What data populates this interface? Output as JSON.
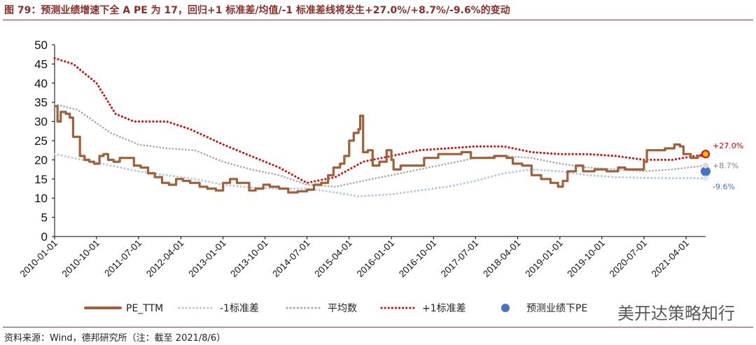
{
  "title": "图 79：预测业绩增速下全 A PE 为 17，回归+1 标准差/均值/-1 标准差线将发生+27.0%/+8.7%/-9.6%的变动",
  "source": "资料来源：Wind，德邦研究所（注：截至 2021/8/6）",
  "watermark": "美开达策略知行",
  "colors": {
    "pe": "#A0603A",
    "minus1": "#B4C7E7",
    "mean": "#A6A6A6",
    "plus1": "#E00000",
    "forecast": "#4472C4",
    "title": "#8B2E2A"
  },
  "chart_data": {
    "type": "line",
    "title": "",
    "xlabel": "",
    "ylabel": "",
    "ylim": [
      0,
      50
    ],
    "yticks": [
      "0",
      "5",
      "10",
      "15",
      "20",
      "25",
      "30",
      "35",
      "40",
      "45",
      "50"
    ],
    "x_range": [
      "2010-01-01",
      "2021-08-06"
    ],
    "xticks": [
      "2010-01-01",
      "2010-10-01",
      "2011-07-01",
      "2012-04-01",
      "2013-01-01",
      "2013-10-01",
      "2014-07-01",
      "2015-04-01",
      "2016-01-01",
      "2016-10-01",
      "2017-07-01",
      "2018-04-01",
      "2019-01-01",
      "2019-10-01",
      "2020-07-01",
      "2021-04-01"
    ],
    "series": [
      {
        "name": "PE_TTM",
        "style": "solid",
        "points": [
          [
            "2010-01-01",
            34
          ],
          [
            "2010-01-20",
            30
          ],
          [
            "2010-02-10",
            32.5
          ],
          [
            "2010-03-15",
            32
          ],
          [
            "2010-04-10",
            31
          ],
          [
            "2010-05-01",
            26
          ],
          [
            "2010-06-15",
            21
          ],
          [
            "2010-07-15",
            20
          ],
          [
            "2010-08-15",
            19.5
          ],
          [
            "2010-09-15",
            19
          ],
          [
            "2010-10-20",
            21
          ],
          [
            "2010-11-15",
            21.5
          ],
          [
            "2010-12-15",
            20
          ],
          [
            "2011-01-20",
            19.5
          ],
          [
            "2011-03-01",
            20.5
          ],
          [
            "2011-04-20",
            20.5
          ],
          [
            "2011-06-01",
            18.5
          ],
          [
            "2011-07-15",
            18
          ],
          [
            "2011-09-01",
            16.5
          ],
          [
            "2011-10-15",
            15.5
          ],
          [
            "2011-12-01",
            14
          ],
          [
            "2012-01-15",
            13.5
          ],
          [
            "2012-03-01",
            15
          ],
          [
            "2012-04-15",
            14.5
          ],
          [
            "2012-06-01",
            14
          ],
          [
            "2012-08-01",
            13
          ],
          [
            "2012-09-20",
            12.5
          ],
          [
            "2012-11-15",
            12
          ],
          [
            "2013-01-01",
            14
          ],
          [
            "2013-02-15",
            15
          ],
          [
            "2013-04-01",
            14
          ],
          [
            "2013-06-20",
            12
          ],
          [
            "2013-08-01",
            12.5
          ],
          [
            "2013-09-20",
            13.5
          ],
          [
            "2013-11-01",
            13
          ],
          [
            "2014-01-01",
            12.5
          ],
          [
            "2014-03-01",
            11.5
          ],
          [
            "2014-05-01",
            11.8
          ],
          [
            "2014-07-01",
            12.2
          ],
          [
            "2014-08-15",
            13.5
          ],
          [
            "2014-10-01",
            14
          ],
          [
            "2014-11-15",
            16
          ],
          [
            "2014-12-20",
            18
          ],
          [
            "2015-02-01",
            19
          ],
          [
            "2015-03-01",
            21
          ],
          [
            "2015-04-01",
            25
          ],
          [
            "2015-05-01",
            27
          ],
          [
            "2015-06-01",
            28
          ],
          [
            "2015-06-12",
            31.5
          ],
          [
            "2015-07-01",
            22
          ],
          [
            "2015-08-01",
            22.5
          ],
          [
            "2015-09-01",
            18.5
          ],
          [
            "2015-10-15",
            19.5
          ],
          [
            "2015-12-01",
            22.5
          ],
          [
            "2016-01-01",
            20
          ],
          [
            "2016-01-15",
            17.5
          ],
          [
            "2016-03-01",
            18.5
          ],
          [
            "2016-05-01",
            18.5
          ],
          [
            "2016-08-01",
            20.5
          ],
          [
            "2016-11-01",
            21.5
          ],
          [
            "2017-01-01",
            21.5
          ],
          [
            "2017-04-01",
            22
          ],
          [
            "2017-06-01",
            20.5
          ],
          [
            "2017-08-15",
            20.5
          ],
          [
            "2017-11-01",
            21
          ],
          [
            "2018-01-20",
            20.5
          ],
          [
            "2018-03-01",
            19
          ],
          [
            "2018-05-01",
            18.5
          ],
          [
            "2018-07-01",
            16
          ],
          [
            "2018-09-01",
            15
          ],
          [
            "2018-11-01",
            14
          ],
          [
            "2018-12-20",
            13
          ],
          [
            "2019-01-20",
            14.5
          ],
          [
            "2019-02-20",
            17
          ],
          [
            "2019-04-15",
            18.5
          ],
          [
            "2019-06-01",
            17
          ],
          [
            "2019-08-15",
            17.5
          ],
          [
            "2019-11-01",
            17
          ],
          [
            "2020-01-15",
            18
          ],
          [
            "2020-03-01",
            17.5
          ],
          [
            "2020-05-01",
            17.5
          ],
          [
            "2020-07-01",
            19.5
          ],
          [
            "2020-07-20",
            22.5
          ],
          [
            "2020-09-15",
            22.5
          ],
          [
            "2020-11-15",
            23
          ],
          [
            "2021-01-15",
            24
          ],
          [
            "2021-02-20",
            23.5
          ],
          [
            "2021-03-15",
            21.5
          ],
          [
            "2021-05-01",
            20.5
          ],
          [
            "2021-06-15",
            21
          ],
          [
            "2021-08-06",
            20.5
          ]
        ]
      },
      {
        "name": "-1标准差",
        "style": "dotted",
        "points": [
          [
            "2010-01-01",
            21.5
          ],
          [
            "2010-07-01",
            20
          ],
          [
            "2011-01-01",
            18.5
          ],
          [
            "2011-07-01",
            17
          ],
          [
            "2012-01-01",
            16
          ],
          [
            "2012-07-01",
            15
          ],
          [
            "2013-01-01",
            13.5
          ],
          [
            "2013-07-01",
            12.8
          ],
          [
            "2014-01-01",
            12.5
          ],
          [
            "2014-07-01",
            12.5
          ],
          [
            "2015-01-01",
            11.5
          ],
          [
            "2015-06-01",
            10.5
          ],
          [
            "2016-01-01",
            11
          ],
          [
            "2016-07-01",
            12
          ],
          [
            "2017-01-01",
            13
          ],
          [
            "2017-07-01",
            14.5
          ],
          [
            "2018-01-01",
            16.5
          ],
          [
            "2018-07-01",
            17.5
          ],
          [
            "2019-01-01",
            17
          ],
          [
            "2019-07-01",
            16
          ],
          [
            "2020-01-01",
            15.5
          ],
          [
            "2020-07-01",
            15.3
          ],
          [
            "2021-01-01",
            15.2
          ],
          [
            "2021-08-06",
            15.2
          ]
        ]
      },
      {
        "name": "平均数",
        "style": "dotted",
        "points": [
          [
            "2010-01-01",
            34.5
          ],
          [
            "2010-06-01",
            33
          ],
          [
            "2011-01-01",
            27
          ],
          [
            "2011-07-01",
            24
          ],
          [
            "2012-01-01",
            23
          ],
          [
            "2012-07-01",
            22.5
          ],
          [
            "2013-01-01",
            19.5
          ],
          [
            "2013-07-01",
            17.5
          ],
          [
            "2014-01-01",
            16
          ],
          [
            "2014-07-01",
            13.5
          ],
          [
            "2015-01-01",
            13
          ],
          [
            "2015-07-01",
            14.5
          ],
          [
            "2016-01-01",
            16
          ],
          [
            "2016-07-01",
            17.5
          ],
          [
            "2017-01-01",
            19
          ],
          [
            "2017-07-01",
            20.5
          ],
          [
            "2018-01-01",
            21
          ],
          [
            "2018-07-01",
            20.5
          ],
          [
            "2019-01-01",
            19
          ],
          [
            "2019-07-01",
            18
          ],
          [
            "2020-01-01",
            17.5
          ],
          [
            "2020-07-01",
            17
          ],
          [
            "2021-01-01",
            17.5
          ],
          [
            "2021-08-06",
            18.5
          ]
        ]
      },
      {
        "name": "+1标准差",
        "style": "dotted",
        "points": [
          [
            "2010-01-01",
            46.5
          ],
          [
            "2010-05-01",
            45
          ],
          [
            "2010-10-01",
            40
          ],
          [
            "2011-02-01",
            32
          ],
          [
            "2011-06-01",
            30
          ],
          [
            "2012-01-01",
            30
          ],
          [
            "2012-06-01",
            28
          ],
          [
            "2013-01-01",
            24
          ],
          [
            "2013-07-01",
            21
          ],
          [
            "2014-01-01",
            18
          ],
          [
            "2014-07-01",
            14
          ],
          [
            "2015-01-01",
            15.5
          ],
          [
            "2015-07-01",
            19.5
          ],
          [
            "2016-01-01",
            21
          ],
          [
            "2016-07-01",
            22.5
          ],
          [
            "2017-01-01",
            23
          ],
          [
            "2017-07-01",
            23.5
          ],
          [
            "2018-01-01",
            23.5
          ],
          [
            "2018-07-01",
            22
          ],
          [
            "2019-01-01",
            21.5
          ],
          [
            "2019-07-01",
            21.5
          ],
          [
            "2020-01-01",
            21
          ],
          [
            "2020-07-01",
            20
          ],
          [
            "2021-01-01",
            20
          ],
          [
            "2021-08-06",
            21.5
          ]
        ]
      },
      {
        "name": "预测业绩下PE",
        "style": "marker",
        "points": [
          [
            "2021-08-06",
            17
          ]
        ]
      }
    ],
    "annotations": [
      {
        "label": "+27.0%",
        "y": 21.5,
        "color": "#E00000"
      },
      {
        "label": "+8.7%",
        "y": 18.5,
        "color": "#808080"
      },
      {
        "label": "-9.6%",
        "y": 15.2,
        "color": "#4472C4"
      }
    ],
    "legend": {
      "position": "bottom",
      "items": [
        "PE_TTM",
        "-1标准差",
        "平均数",
        "+1标准差",
        "预测业绩下PE"
      ]
    }
  }
}
